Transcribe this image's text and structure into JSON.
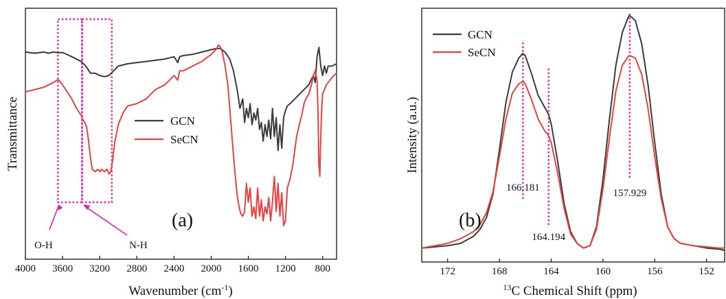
{
  "chart_data": [
    {
      "type": "line",
      "panel_label": "(a)",
      "xlabel": "Wavenumber (cm⁻¹)",
      "ylabel": "Transmittance",
      "x_reversed": true,
      "xlim": [
        4000,
        650
      ],
      "ylim": [
        0,
        1
      ],
      "xticks": [
        4000,
        3600,
        3200,
        2800,
        2400,
        2000,
        1600,
        1200,
        800
      ],
      "yticks": [],
      "legend_position": "center-right",
      "colors": {
        "GCN": "#3a3a3a",
        "SeCN": "#e8413f"
      },
      "series": [
        {
          "name": "GCN",
          "x": [
            4000,
            3900,
            3800,
            3750,
            3700,
            3650,
            3600,
            3500,
            3400,
            3350,
            3300,
            3250,
            3200,
            3150,
            3100,
            3050,
            3000,
            2900,
            2800,
            2700,
            2600,
            2500,
            2400,
            2360,
            2340,
            2300,
            2200,
            2100,
            2000,
            1950,
            1900,
            1850,
            1800,
            1760,
            1720,
            1690,
            1660,
            1640,
            1620,
            1600,
            1580,
            1560,
            1540,
            1520,
            1500,
            1480,
            1460,
            1440,
            1420,
            1400,
            1380,
            1360,
            1340,
            1320,
            1300,
            1280,
            1260,
            1240,
            1220,
            1200,
            1180,
            1150,
            1100,
            1050,
            1000,
            950,
            900,
            880,
            860,
            840,
            820,
            800,
            780,
            760,
            740,
            700,
            650
          ],
          "y": [
            0.86,
            0.855,
            0.86,
            0.855,
            0.86,
            0.857,
            0.858,
            0.84,
            0.82,
            0.8,
            0.77,
            0.77,
            0.76,
            0.755,
            0.76,
            0.78,
            0.8,
            0.81,
            0.815,
            0.82,
            0.825,
            0.83,
            0.84,
            0.815,
            0.84,
            0.845,
            0.85,
            0.86,
            0.87,
            0.875,
            0.875,
            0.86,
            0.83,
            0.78,
            0.7,
            0.62,
            0.66,
            0.56,
            0.62,
            0.58,
            0.64,
            0.55,
            0.6,
            0.57,
            0.62,
            0.53,
            0.56,
            0.48,
            0.55,
            0.5,
            0.57,
            0.49,
            0.62,
            0.5,
            0.58,
            0.44,
            0.55,
            0.45,
            0.58,
            0.61,
            0.63,
            0.64,
            0.66,
            0.68,
            0.7,
            0.72,
            0.76,
            0.73,
            0.84,
            0.88,
            0.8,
            0.76,
            0.8,
            0.77,
            0.8,
            0.8,
            0.81
          ]
        },
        {
          "name": "SeCN",
          "x": [
            4000,
            3950,
            3900,
            3850,
            3800,
            3750,
            3700,
            3660,
            3640,
            3620,
            3600,
            3550,
            3500,
            3450,
            3400,
            3380,
            3360,
            3340,
            3320,
            3300,
            3280,
            3250,
            3220,
            3200,
            3180,
            3150,
            3120,
            3100,
            3080,
            3060,
            3040,
            3000,
            2950,
            2900,
            2800,
            2700,
            2600,
            2500,
            2450,
            2400,
            2360,
            2340,
            2300,
            2200,
            2100,
            2000,
            1950,
            1920,
            1900,
            1880,
            1850,
            1820,
            1800,
            1780,
            1760,
            1740,
            1720,
            1700,
            1680,
            1660,
            1640,
            1620,
            1600,
            1580,
            1560,
            1540,
            1520,
            1500,
            1480,
            1460,
            1440,
            1420,
            1400,
            1380,
            1360,
            1340,
            1320,
            1300,
            1280,
            1260,
            1240,
            1220,
            1200,
            1180,
            1150,
            1120,
            1100,
            1080,
            1050,
            1020,
            1000,
            980,
            950,
            920,
            900,
            880,
            860,
            850,
            840,
            830,
            820,
            810,
            800,
            780,
            760,
            740,
            720,
            700,
            680,
            650
          ],
          "y": [
            0.69,
            0.695,
            0.7,
            0.705,
            0.71,
            0.72,
            0.73,
            0.74,
            0.74,
            0.73,
            0.72,
            0.69,
            0.66,
            0.62,
            0.59,
            0.57,
            0.56,
            0.54,
            0.48,
            0.41,
            0.36,
            0.35,
            0.36,
            0.35,
            0.36,
            0.35,
            0.36,
            0.34,
            0.35,
            0.4,
            0.47,
            0.55,
            0.6,
            0.63,
            0.64,
            0.66,
            0.7,
            0.72,
            0.74,
            0.76,
            0.74,
            0.78,
            0.78,
            0.8,
            0.82,
            0.85,
            0.87,
            0.89,
            0.88,
            0.86,
            0.8,
            0.72,
            0.62,
            0.52,
            0.42,
            0.33,
            0.25,
            0.2,
            0.17,
            0.16,
            0.18,
            0.3,
            0.22,
            0.28,
            0.16,
            0.2,
            0.15,
            0.28,
            0.16,
            0.23,
            0.14,
            0.2,
            0.17,
            0.24,
            0.14,
            0.22,
            0.33,
            0.18,
            0.3,
            0.16,
            0.26,
            0.12,
            0.14,
            0.28,
            0.32,
            0.38,
            0.44,
            0.5,
            0.55,
            0.6,
            0.64,
            0.66,
            0.68,
            0.72,
            0.76,
            0.78,
            0.74,
            0.6,
            0.38,
            0.33,
            0.5,
            0.62,
            0.68,
            0.7,
            0.72,
            0.73,
            0.74,
            0.75,
            0.76,
            0.77
          ]
        }
      ],
      "annotations": [
        {
          "text": "O-H",
          "region": [
            3650,
            3390
          ]
        },
        {
          "text": "N-H",
          "region": [
            3390,
            3070
          ]
        }
      ]
    },
    {
      "type": "line",
      "panel_label": "(b)",
      "xlabel": "13C Chemical Shift (ppm)",
      "xlabel_superscript": "13",
      "xlabel_rest": "C Chemical Shift (ppm)",
      "ylabel": "Intensity (a.u.)",
      "x_reversed": true,
      "xlim": [
        174,
        150.6
      ],
      "ylim": [
        0,
        1
      ],
      "xticks": [
        172,
        168,
        164,
        160,
        156,
        152
      ],
      "yticks": [],
      "legend_position": "top-left",
      "colors": {
        "GCN": "#3a3a3a",
        "SeCN": "#e8413f"
      },
      "series": [
        {
          "name": "GCN",
          "x": [
            174,
            173,
            172,
            171,
            170,
            169.5,
            169,
            168.5,
            168,
            167.5,
            167,
            166.5,
            166.2,
            166,
            165.5,
            165,
            164.5,
            164.2,
            164,
            163.5,
            163,
            162.5,
            162,
            161.5,
            161,
            160.5,
            160,
            159.5,
            159,
            158.5,
            158,
            157.9,
            157.5,
            157,
            156.5,
            156,
            155.5,
            155,
            154.5,
            154,
            153,
            152,
            151,
            150.6
          ],
          "y": [
            0.03,
            0.035,
            0.04,
            0.05,
            0.08,
            0.11,
            0.16,
            0.26,
            0.45,
            0.65,
            0.78,
            0.84,
            0.86,
            0.85,
            0.77,
            0.68,
            0.63,
            0.6,
            0.56,
            0.4,
            0.22,
            0.1,
            0.05,
            0.03,
            0.04,
            0.12,
            0.32,
            0.58,
            0.81,
            0.95,
            1.02,
            1.02,
            1.0,
            0.9,
            0.72,
            0.48,
            0.26,
            0.12,
            0.07,
            0.05,
            0.04,
            0.03,
            0.025,
            0.02
          ]
        },
        {
          "name": "SeCN",
          "x": [
            174,
            173,
            172,
            171,
            170,
            169.5,
            169,
            168.5,
            168,
            167.5,
            167,
            166.5,
            166.2,
            166,
            165.5,
            165,
            164.5,
            164.2,
            164,
            163.5,
            163,
            162.5,
            162,
            161.5,
            161,
            160.5,
            160,
            159.5,
            159,
            158.5,
            158,
            157.9,
            157.5,
            157,
            156.5,
            156,
            155.5,
            155,
            154.5,
            154,
            153,
            152,
            151,
            150.6
          ],
          "y": [
            0.03,
            0.04,
            0.05,
            0.07,
            0.1,
            0.13,
            0.18,
            0.27,
            0.42,
            0.58,
            0.69,
            0.73,
            0.74,
            0.73,
            0.66,
            0.58,
            0.53,
            0.51,
            0.48,
            0.35,
            0.2,
            0.09,
            0.05,
            0.03,
            0.04,
            0.11,
            0.28,
            0.5,
            0.7,
            0.81,
            0.85,
            0.85,
            0.84,
            0.77,
            0.62,
            0.42,
            0.24,
            0.12,
            0.07,
            0.05,
            0.04,
            0.035,
            0.03,
            0.03
          ]
        }
      ],
      "peak_labels": [
        {
          "text": "166.181",
          "x": 166.181
        },
        {
          "text": "164.194",
          "x": 164.194
        },
        {
          "text": "157.929",
          "x": 157.929
        }
      ]
    }
  ]
}
